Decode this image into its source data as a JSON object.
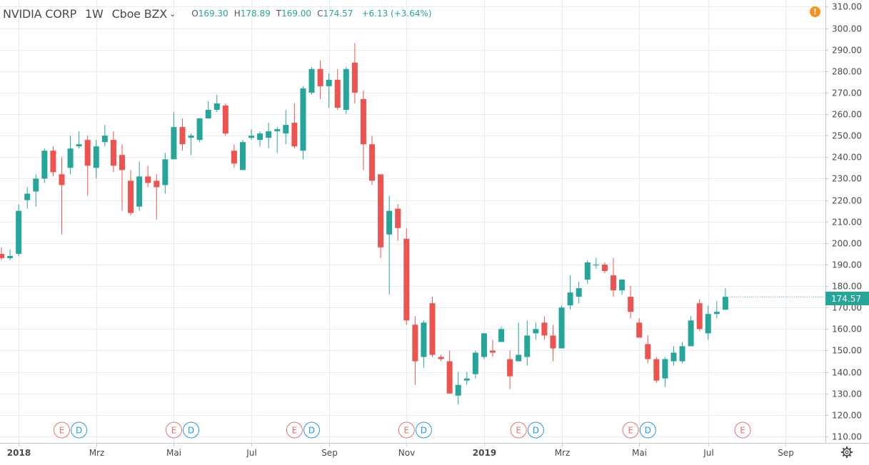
{
  "legend": {
    "symbol": "NVIDIA CORP",
    "interval": "1W",
    "exchange": "Cboe BZX",
    "open_label": "O",
    "open": "169.30",
    "high_label": "H",
    "high": "178.89",
    "low_label": "T",
    "low": "169.00",
    "close_label": "C",
    "close": "174.57",
    "change": "+6.13 (+3.64%)"
  },
  "alert_icon": "!",
  "last_price_label": "174.57",
  "colors": {
    "up": "#26a69a",
    "down": "#ef5350",
    "grid": "#e8edf2",
    "earnings": "#e57373",
    "dividend": "#2196f3"
  },
  "chart_data": {
    "type": "candlestick",
    "interval": "weekly",
    "start_week": "2017-12-18",
    "ylim": [
      106,
      312
    ],
    "yticks": [
      "110.00",
      "120.00",
      "130.00",
      "140.00",
      "150.00",
      "160.00",
      "170.00",
      "180.00",
      "190.00",
      "200.00",
      "210.00",
      "220.00",
      "230.00",
      "240.00",
      "250.00",
      "260.00",
      "270.00",
      "280.00",
      "290.00",
      "300.00",
      "310.00"
    ],
    "xticks": [
      {
        "label": "2018",
        "week": 2,
        "bold": true
      },
      {
        "label": "Mrz",
        "week": 11
      },
      {
        "label": "Mai",
        "week": 20
      },
      {
        "label": "Jul",
        "week": 29
      },
      {
        "label": "Sep",
        "week": 38
      },
      {
        "label": "Nov",
        "week": 47
      },
      {
        "label": "2019",
        "week": 56,
        "bold": true
      },
      {
        "label": "Mrz",
        "week": 65
      },
      {
        "label": "Mai",
        "week": 74
      },
      {
        "label": "Jul",
        "week": 82
      },
      {
        "label": "Sep",
        "week": 91
      }
    ],
    "events": [
      {
        "type": "E",
        "week": 7
      },
      {
        "type": "D",
        "week": 9
      },
      {
        "type": "E",
        "week": 20
      },
      {
        "type": "D",
        "week": 22
      },
      {
        "type": "E",
        "week": 34
      },
      {
        "type": "D",
        "week": 36
      },
      {
        "type": "E",
        "week": 47
      },
      {
        "type": "D",
        "week": 49
      },
      {
        "type": "E",
        "week": 60
      },
      {
        "type": "D",
        "week": 62
      },
      {
        "type": "E",
        "week": 73
      },
      {
        "type": "D",
        "week": 75
      },
      {
        "type": "E",
        "week": 86
      }
    ],
    "candles": [
      [
        195,
        198,
        192,
        193
      ],
      [
        193,
        197,
        192,
        194
      ],
      [
        195,
        218,
        194,
        215
      ],
      [
        220,
        226,
        216,
        223
      ],
      [
        224,
        232,
        217,
        230
      ],
      [
        230,
        244,
        228,
        243
      ],
      [
        243,
        245,
        231,
        233
      ],
      [
        232,
        240,
        204,
        227
      ],
      [
        235,
        250,
        232,
        244
      ],
      [
        245,
        252,
        244,
        246
      ],
      [
        248,
        250,
        222,
        236
      ],
      [
        235,
        248,
        230,
        245
      ],
      [
        247,
        255,
        245,
        250
      ],
      [
        248,
        252,
        233,
        236
      ],
      [
        241,
        246,
        215,
        234
      ],
      [
        229,
        234,
        213,
        214
      ],
      [
        217,
        238,
        215,
        231
      ],
      [
        231,
        236,
        226,
        228
      ],
      [
        229,
        232,
        211,
        226
      ],
      [
        227,
        242,
        223,
        239
      ],
      [
        239,
        261,
        239,
        254
      ],
      [
        254,
        258,
        243,
        246
      ],
      [
        249,
        251,
        241,
        250
      ],
      [
        248,
        258,
        247,
        258
      ],
      [
        258,
        266,
        258,
        262
      ],
      [
        262,
        269,
        261,
        265
      ],
      [
        264,
        265,
        250,
        251
      ],
      [
        243,
        246,
        235,
        237
      ],
      [
        234,
        248,
        234,
        247
      ],
      [
        249,
        253,
        248,
        250
      ],
      [
        248,
        252,
        245,
        251
      ],
      [
        249,
        256,
        244,
        252
      ],
      [
        252,
        254,
        242,
        253
      ],
      [
        251,
        262,
        246,
        255
      ],
      [
        256,
        265,
        244,
        245
      ],
      [
        243,
        273,
        239,
        272
      ],
      [
        270,
        282,
        269,
        281
      ],
      [
        281,
        285,
        267,
        273
      ],
      [
        273,
        279,
        263,
        276
      ],
      [
        276,
        281,
        262,
        263
      ],
      [
        262,
        282,
        260,
        281
      ],
      [
        284,
        293,
        265,
        270
      ],
      [
        267,
        271,
        234,
        246
      ],
      [
        246,
        250,
        227,
        229
      ],
      [
        232,
        232,
        193,
        198
      ],
      [
        204,
        222,
        176,
        215
      ],
      [
        216,
        218,
        201,
        207
      ],
      [
        202,
        207,
        162,
        164
      ],
      [
        162,
        166,
        134,
        145
      ],
      [
        147,
        164,
        142,
        163
      ],
      [
        172,
        175,
        147,
        148
      ],
      [
        147,
        148,
        145,
        146
      ],
      [
        145,
        150,
        130,
        130
      ],
      [
        129,
        140,
        125,
        134
      ],
      [
        136,
        140,
        134,
        137
      ],
      [
        139,
        150,
        137,
        149
      ],
      [
        147,
        158,
        146,
        158
      ],
      [
        150,
        155,
        147,
        149
      ],
      [
        154,
        161,
        154,
        160
      ],
      [
        146,
        150,
        132,
        138
      ],
      [
        145,
        163,
        145,
        148
      ],
      [
        147,
        164,
        143,
        157
      ],
      [
        158,
        163,
        155,
        160
      ],
      [
        163,
        166,
        155,
        157
      ],
      [
        157,
        162,
        145,
        151
      ],
      [
        151,
        171,
        151,
        170
      ],
      [
        171,
        185,
        169,
        177
      ],
      [
        175,
        182,
        172,
        179
      ],
      [
        183,
        192,
        181,
        191
      ],
      [
        190,
        193,
        188,
        190
      ],
      [
        190,
        191,
        186,
        187
      ],
      [
        185,
        193,
        175,
        178
      ],
      [
        178,
        183,
        176,
        183
      ],
      [
        175,
        180,
        165,
        168
      ],
      [
        163,
        165,
        157,
        156
      ],
      [
        153,
        157,
        144,
        146
      ],
      [
        146,
        147,
        135,
        136
      ],
      [
        137,
        147,
        133,
        146
      ],
      [
        145,
        152,
        143,
        149
      ],
      [
        145,
        154,
        144,
        152
      ],
      [
        152,
        166,
        152,
        164
      ],
      [
        172,
        174,
        159,
        160
      ],
      [
        158,
        171,
        155,
        167
      ],
      [
        167,
        173,
        165,
        168
      ],
      [
        169,
        179,
        169,
        175
      ]
    ]
  }
}
